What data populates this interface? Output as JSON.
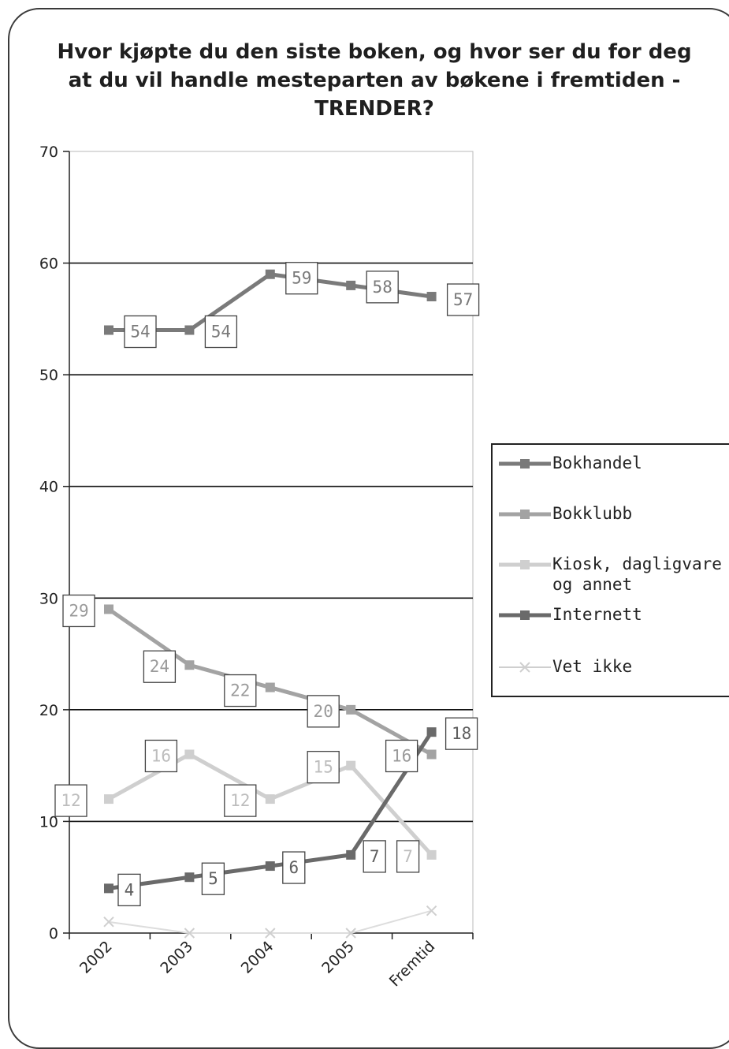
{
  "title": "Hvor kjøpte du den siste boken, og hvor ser du for deg at du vil handle mesteparten av bøkene i fremtiden - TRENDER?",
  "colors": {
    "bokhandel": "#7a7a7a",
    "bokklubb": "#a3a3a3",
    "kiosk": "#cfcfcf",
    "internett": "#6a6a6a",
    "vetikke": "#dddddd",
    "grid": "#111111"
  },
  "chart_data": {
    "type": "line",
    "title": "Hvor kjøpte du den siste boken, og hvor ser du for deg at du vil handle mesteparten av bøkene i fremtiden - TRENDER?",
    "categories": [
      "2002",
      "2003",
      "2004",
      "2005",
      "Fremtid"
    ],
    "ylim": [
      0,
      70
    ],
    "yticks": [
      0,
      10,
      20,
      30,
      40,
      50,
      60,
      70
    ],
    "grid": true,
    "legend_position": "right",
    "series": [
      {
        "name": "Bokhandel",
        "values": [
          54,
          54,
          59,
          58,
          57
        ],
        "labels": [
          "54",
          "54",
          "59",
          "58",
          "57"
        ],
        "marker": "square"
      },
      {
        "name": "Bokklubb",
        "values": [
          29,
          24,
          22,
          20,
          16
        ],
        "labels": [
          "29",
          "24",
          "22",
          "20",
          "16"
        ],
        "marker": "square"
      },
      {
        "name": "Kiosk, dagligvare og annet",
        "values": [
          12,
          16,
          12,
          15,
          7
        ],
        "labels": [
          "12",
          "16",
          "12",
          "15",
          "7"
        ],
        "marker": "square"
      },
      {
        "name": "Internett",
        "values": [
          4,
          5,
          6,
          7,
          18
        ],
        "labels": [
          "4",
          "5",
          "6",
          "7",
          "18"
        ],
        "marker": "square"
      },
      {
        "name": "Vet ikke",
        "values": [
          1,
          0,
          0,
          0,
          2
        ],
        "labels": [],
        "marker": "x"
      }
    ]
  }
}
